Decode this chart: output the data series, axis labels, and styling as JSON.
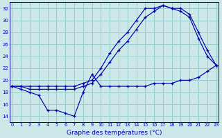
{
  "title": "Graphe des températures (°C)",
  "bg_color": "#cce8e8",
  "grid_color": "#99cccc",
  "line_color": "#0000aa",
  "ylim": [
    13,
    33
  ],
  "xlim": [
    -0.3,
    23.3
  ],
  "yticks": [
    14,
    16,
    18,
    20,
    22,
    24,
    26,
    28,
    30,
    32
  ],
  "xticks": [
    0,
    1,
    2,
    3,
    4,
    5,
    6,
    7,
    8,
    9,
    10,
    11,
    12,
    13,
    14,
    15,
    16,
    17,
    18,
    19,
    20,
    21,
    22,
    23
  ],
  "series": {
    "max": {
      "x": [
        0,
        1,
        2,
        3,
        4,
        5,
        6,
        7,
        8,
        9,
        10,
        11,
        12,
        13,
        14,
        15,
        16,
        17,
        18,
        19,
        20,
        21,
        22,
        23
      ],
      "y": [
        19.0,
        19.0,
        19.0,
        19.0,
        19.0,
        19.0,
        19.0,
        19.0,
        19.5,
        20.0,
        22.0,
        24.5,
        26.5,
        28.0,
        30.0,
        32.0,
        32.0,
        32.5,
        32.0,
        32.0,
        31.0,
        28.0,
        25.0,
        22.5
      ]
    },
    "actual": {
      "x": [
        0,
        1,
        2,
        3,
        4,
        5,
        6,
        7,
        8,
        9,
        10,
        11,
        12,
        13,
        14,
        15,
        16,
        17,
        18,
        19,
        20,
        21,
        22,
        23
      ],
      "y": [
        19.0,
        19.0,
        18.5,
        18.5,
        18.5,
        18.5,
        18.5,
        18.5,
        19.0,
        19.5,
        21.0,
        23.0,
        25.0,
        26.5,
        28.5,
        30.5,
        31.5,
        32.5,
        32.0,
        31.5,
        30.5,
        27.0,
        24.0,
        22.5
      ]
    },
    "min": {
      "x": [
        0,
        1,
        2,
        3,
        4,
        5,
        6,
        7,
        8,
        9,
        10,
        11,
        12,
        13,
        14,
        15,
        16,
        17,
        18,
        19,
        20,
        21,
        22,
        23
      ],
      "y": [
        19.0,
        18.5,
        18.0,
        17.5,
        15.0,
        15.0,
        14.5,
        14.0,
        18.0,
        21.0,
        19.0,
        19.0,
        19.0,
        19.0,
        19.0,
        19.0,
        19.5,
        19.5,
        19.5,
        20.0,
        20.0,
        20.5,
        21.5,
        22.5
      ]
    }
  }
}
